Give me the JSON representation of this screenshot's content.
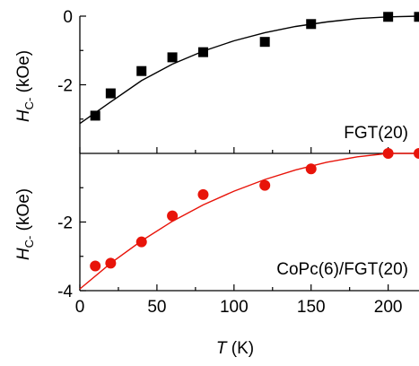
{
  "chart_data": {
    "type": "scatter",
    "layout": "two stacked panels sharing the x axis",
    "x_axis": {
      "label_symbol": "T",
      "label_unit": " (K)",
      "range": [
        0,
        220
      ],
      "ticks": [
        0,
        50,
        100,
        150,
        200
      ],
      "tick_labels": [
        "0",
        "50",
        "100",
        "150",
        "200"
      ]
    },
    "panels": [
      {
        "annotation": "FGT(20)",
        "color": "#000000",
        "marker": "square",
        "y_axis": {
          "label_symbol": "H",
          "label_sub": "C-",
          "label_unit": " (kOe)",
          "range": [
            -4,
            0
          ],
          "ticks": [
            -2,
            0
          ],
          "tick_labels": [
            "-2",
            "0"
          ]
        },
        "points": {
          "x": [
            10,
            20,
            40,
            60,
            80,
            120,
            150,
            200,
            220
          ],
          "y": [
            -2.9,
            -2.25,
            -1.6,
            -1.2,
            -1.05,
            -0.75,
            -0.23,
            -0.02,
            -0.02
          ]
        },
        "fit": {
          "x": [
            0,
            20,
            40,
            60,
            80,
            100,
            120,
            140,
            160,
            180,
            200,
            220
          ],
          "y": [
            -3.13,
            -2.5,
            -1.88,
            -1.4,
            -1.02,
            -0.72,
            -0.48,
            -0.3,
            -0.17,
            -0.07,
            -0.02,
            0.0
          ]
        }
      },
      {
        "annotation": "CoPc(6)/FGT(20)",
        "color": "#e8140a",
        "marker": "circle",
        "y_axis": {
          "label_symbol": "H",
          "label_sub": "C-",
          "label_unit": " (kOe)",
          "range": [
            -4,
            0
          ],
          "ticks": [
            -4,
            -2
          ],
          "tick_labels": [
            "-4",
            "-2"
          ]
        },
        "points": {
          "x": [
            10,
            20,
            40,
            60,
            80,
            120,
            150,
            200,
            220
          ],
          "y": [
            -3.28,
            -3.2,
            -2.58,
            -1.82,
            -1.2,
            -0.93,
            -0.45,
            0.0,
            0.0
          ]
        },
        "fit": {
          "x": [
            0,
            20,
            40,
            60,
            80,
            100,
            120,
            140,
            160,
            180,
            200,
            220
          ],
          "y": [
            -3.95,
            -3.2,
            -2.55,
            -1.98,
            -1.5,
            -1.1,
            -0.76,
            -0.48,
            -0.26,
            -0.1,
            0.0,
            0.04
          ]
        }
      }
    ]
  }
}
